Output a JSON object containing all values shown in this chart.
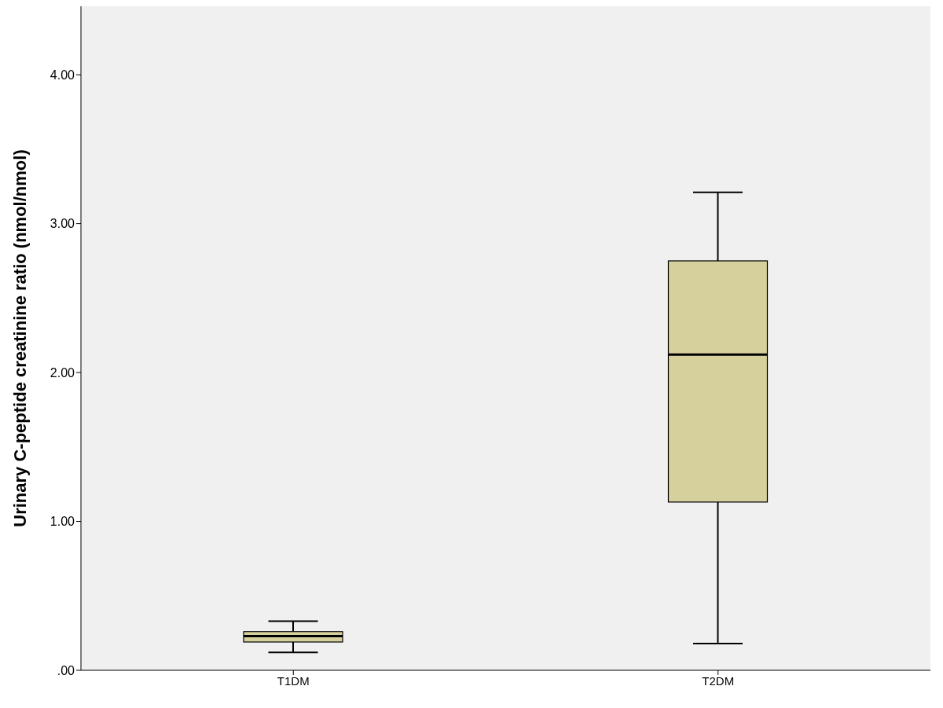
{
  "chart_data": {
    "type": "box",
    "ylabel": "Urinary C-peptide creatinine ratio (nmol/nmol)",
    "categories": [
      "T1DM",
      "T2DM"
    ],
    "boxes": [
      {
        "low": 0.12,
        "q1": 0.19,
        "median": 0.23,
        "q3": 0.26,
        "high": 0.33
      },
      {
        "low": 0.18,
        "q1": 1.13,
        "median": 2.12,
        "q3": 2.75,
        "high": 3.21
      }
    ],
    "color": "#d6d19c",
    "ylim": [
      0,
      4.46
    ],
    "yticks": [
      {
        "value": 0,
        "label": ".00"
      },
      {
        "value": 1,
        "label": "1.00"
      },
      {
        "value": 2,
        "label": "2.00"
      },
      {
        "value": 3,
        "label": "3.00"
      },
      {
        "value": 4,
        "label": "4.00"
      }
    ]
  }
}
